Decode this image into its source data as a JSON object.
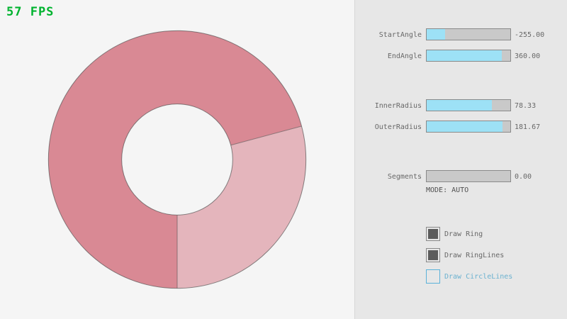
{
  "fps": "57 FPS",
  "colors": {
    "bg": "#f5f5f5",
    "panel_bg": "#e7e7e7",
    "fps_green": "#00b32f",
    "ring_overlap": "#d98994",
    "ring_single": "#e4b5bc",
    "outline": "#4a4a4a",
    "slider_track": "#c9c9c9",
    "slider_fill": "#9de1f6",
    "slider_border": "#8a8a8a",
    "text_gray": "#686868",
    "mode_gray": "#505050",
    "check_fill": "#5c5c5c",
    "accent_blue": "#5bb2d9",
    "accent_text": "#6cb2d0"
  },
  "panel": {
    "sliders": [
      {
        "label": "StartAngle",
        "value": "-255.00",
        "fill_pct": 22
      },
      {
        "label": "EndAngle",
        "value": "360.00",
        "fill_pct": 90
      },
      {
        "label": "InnerRadius",
        "value": "78.33",
        "fill_pct": 78
      },
      {
        "label": "OuterRadius",
        "value": "181.67",
        "fill_pct": 91
      },
      {
        "label": "Segments",
        "value": "0.00",
        "fill_pct": 0
      }
    ],
    "mode_text": "MODE: AUTO",
    "checkboxes": [
      {
        "label": "Draw Ring",
        "checked": true
      },
      {
        "label": "Draw RingLines",
        "checked": true
      },
      {
        "label": "Draw CircleLines",
        "checked": false
      }
    ]
  }
}
